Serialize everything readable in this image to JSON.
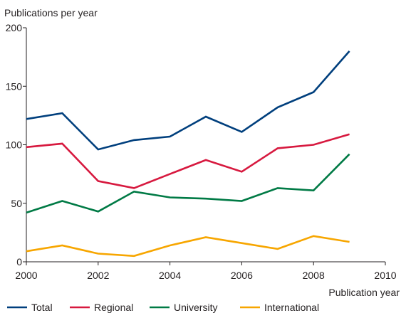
{
  "chart_data": {
    "type": "line",
    "ylabel": "Publications per year",
    "xlabel": "Publication year",
    "xlim": [
      2000,
      2010
    ],
    "ylim": [
      0,
      200
    ],
    "xticks": [
      2000,
      2002,
      2004,
      2006,
      2008,
      2010
    ],
    "yticks": [
      0,
      50,
      100,
      150,
      200
    ],
    "grid": false,
    "legend_position": "bottom",
    "x": [
      2000,
      2001,
      2002,
      2003,
      2004,
      2005,
      2006,
      2007,
      2008,
      2009
    ],
    "series": [
      {
        "name": "Total",
        "color": "#003f7d",
        "values": [
          122,
          127,
          96,
          104,
          107,
          124,
          111,
          132,
          145,
          180
        ]
      },
      {
        "name": "Regional",
        "color": "#d7193f",
        "values": [
          98,
          101,
          69,
          63,
          75,
          87,
          77,
          97,
          100,
          109
        ]
      },
      {
        "name": "University",
        "color": "#007a45",
        "values": [
          42,
          52,
          43,
          60,
          55,
          54,
          52,
          63,
          61,
          92
        ]
      },
      {
        "name": "International",
        "color": "#f7a600",
        "values": [
          9,
          14,
          7,
          5,
          14,
          21,
          16,
          11,
          22,
          17
        ]
      }
    ]
  }
}
